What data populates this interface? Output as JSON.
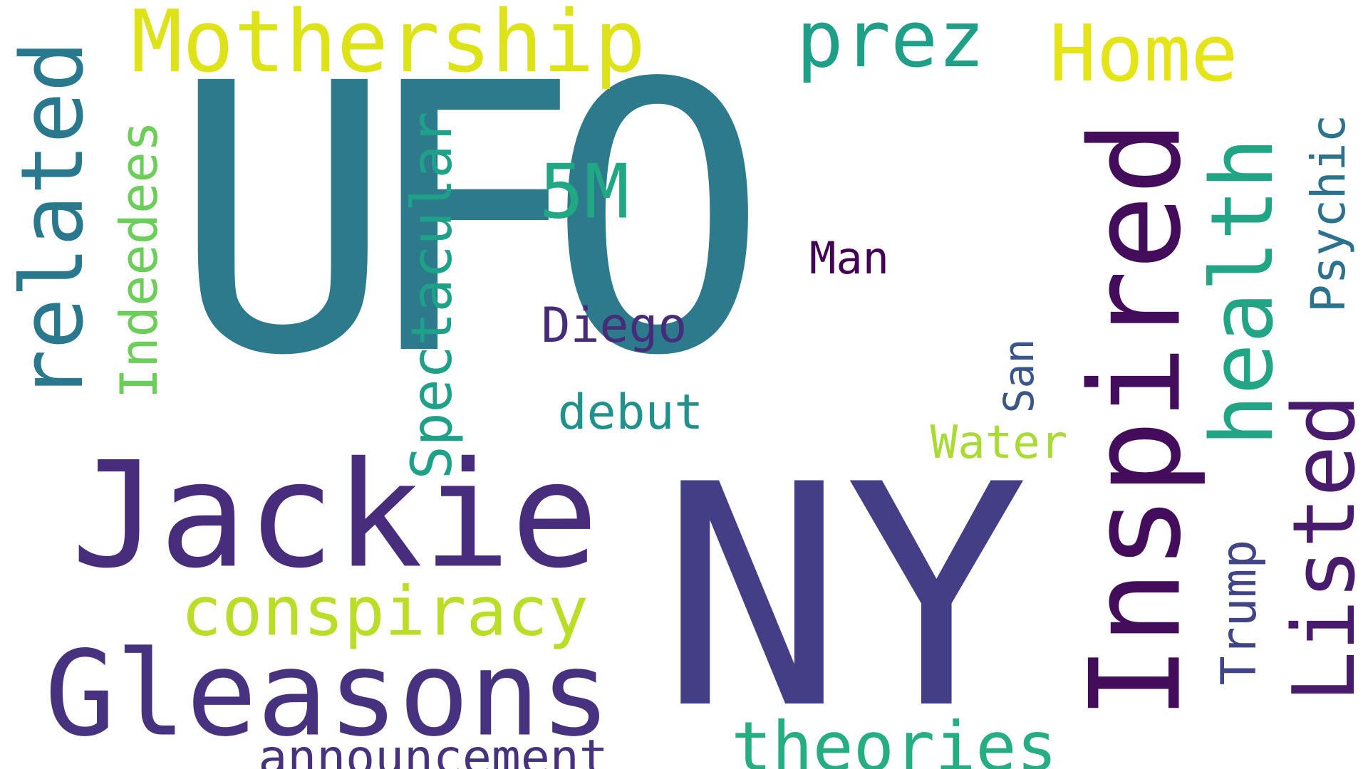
{
  "words": [
    {
      "text": "UFO",
      "color": "#2c7a8c"
    },
    {
      "text": "NY",
      "color": "#433e85"
    },
    {
      "text": "Jackie",
      "color": "#472d7b"
    },
    {
      "text": "Inspired",
      "color": "#440d5b"
    },
    {
      "text": "Gleasons",
      "color": "#46327e"
    },
    {
      "text": "Mothership",
      "color": "#dde318"
    },
    {
      "text": "related",
      "color": "#2a788e"
    },
    {
      "text": "health",
      "color": "#21a585"
    },
    {
      "text": "Listed",
      "color": "#481b6d"
    },
    {
      "text": "Home",
      "color": "#e5e419"
    },
    {
      "text": "prez",
      "color": "#1f9f88"
    },
    {
      "text": "5M",
      "color": "#22a785"
    },
    {
      "text": "theories",
      "color": "#26ad81"
    },
    {
      "text": "conspiracy",
      "color": "#bade28"
    },
    {
      "text": "Spectacular",
      "color": "#1fa088"
    },
    {
      "text": "Indeedees",
      "color": "#6ccd5a"
    },
    {
      "text": "announcement",
      "color": "#46327e"
    },
    {
      "text": "Trump",
      "color": "#414487"
    },
    {
      "text": "Psychic",
      "color": "#2c718e"
    },
    {
      "text": "Diego",
      "color": "#472c7a"
    },
    {
      "text": "debut",
      "color": "#21918c"
    },
    {
      "text": "Water",
      "color": "#a8db34"
    },
    {
      "text": "Man",
      "color": "#440154"
    },
    {
      "text": "San",
      "color": "#39568c"
    }
  ]
}
